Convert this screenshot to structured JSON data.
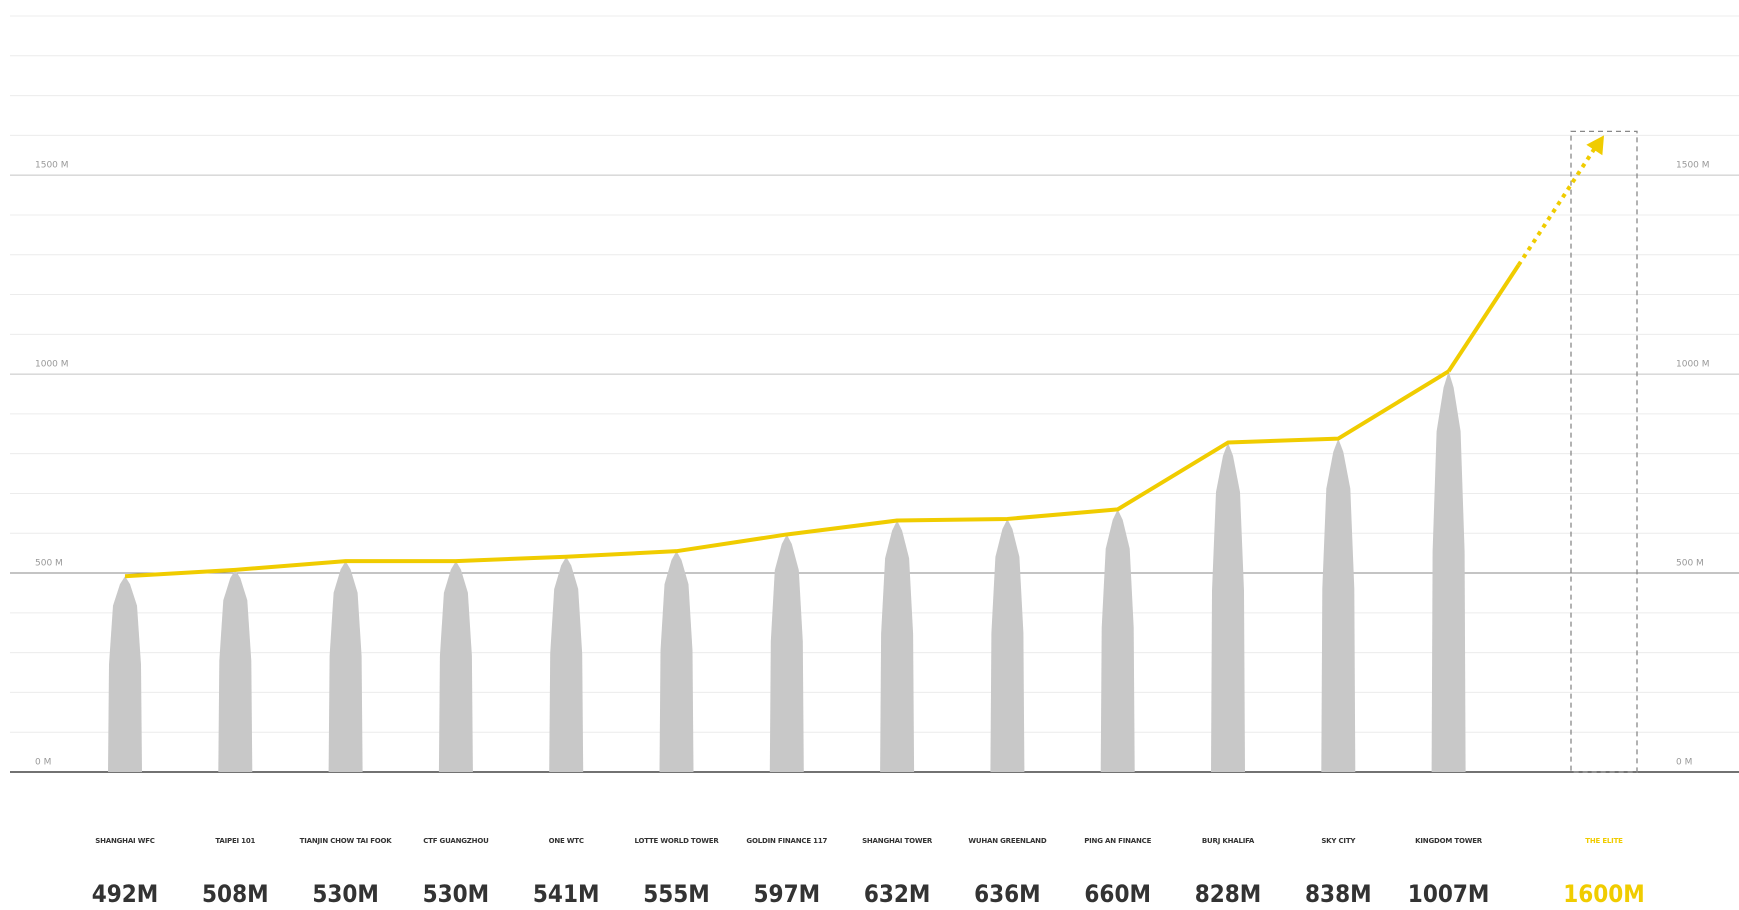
{
  "chart_data": {
    "type": "line",
    "categories": [
      "SHANGHAI WFC",
      "TAIPEI 101",
      "TIANJIN CHOW TAI FOOK",
      "CTF GUANGZHOU",
      "ONE WTC",
      "LOTTE WORLD TOWER",
      "GOLDIN FINANCE 117",
      "SHANGHAI TOWER",
      "WUHAN GREENLAND",
      "PING AN FINANCE",
      "BURJ KHALIFA",
      "SKY CITY",
      "KINGDOM TOWER"
    ],
    "values": [
      492,
      508,
      530,
      530,
      541,
      555,
      597,
      632,
      636,
      660,
      828,
      838,
      1007
    ],
    "value_labels": [
      "492M",
      "508M",
      "530M",
      "530M",
      "541M",
      "555M",
      "597M",
      "632M",
      "636M",
      "660M",
      "828M",
      "838M",
      "1007M"
    ],
    "projection": {
      "category": "THE ELITE",
      "value": 1600,
      "value_label": "1600M",
      "color": "#f0cc00"
    },
    "color": "#f0cc00",
    "building_color": "#c8c8c8",
    "ylim": [
      0,
      1900
    ],
    "yticks": [
      {
        "value": 0,
        "label": "0 M"
      },
      {
        "value": 500,
        "label": "500 M"
      },
      {
        "value": 1000,
        "label": "1000 M"
      },
      {
        "value": 1500,
        "label": "1500 M"
      }
    ],
    "grid": true
  }
}
